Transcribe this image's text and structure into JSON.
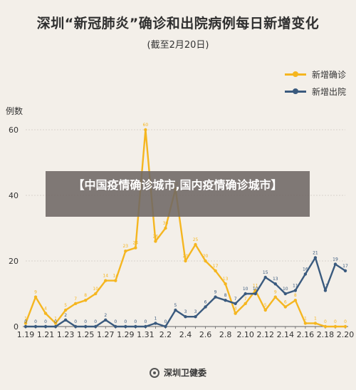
{
  "title": "深圳“新冠肺炎”确诊和出院病例每日新增变化",
  "subtitle": "(截至2月20日)",
  "overlay_text": "【中国疫情确诊城市,国内疫情确诊城市】",
  "footer": "深圳卫健委",
  "colors": {
    "confirmed": "#f5b620",
    "discharged": "#3a5a7e"
  },
  "chart_data": {
    "type": "line",
    "ylabel": "例数",
    "ylim": [
      0,
      60
    ],
    "yticks": [
      0,
      20,
      40,
      60
    ],
    "x": [
      "1.19",
      "1.20",
      "1.21",
      "1.22",
      "1.23",
      "1.24",
      "1.25",
      "1.26",
      "1.27",
      "1.28",
      "1.29",
      "1.30",
      "1.31",
      "2.1",
      "2.2",
      "2.3",
      "2.4",
      "2.5",
      "2.6",
      "2.7",
      "2.8",
      "2.9",
      "2.10",
      "2.11",
      "2.12",
      "2.13",
      "2.14",
      "2.15",
      "2.16",
      "2.17",
      "2.18",
      "2.19",
      "2.20"
    ],
    "xtick_labels": [
      "1.19",
      "1.21",
      "1.23",
      "1.25",
      "1.27",
      "1.29",
      "1.31",
      "2.2",
      "2.4",
      "2.6",
      "2.8",
      "2.10",
      "2.12",
      "2.14",
      "2.16",
      "2.18",
      "2.20"
    ],
    "legend": "top-right",
    "series": [
      {
        "name": "新增确诊",
        "values": [
          1,
          9,
          4,
          1,
          5,
          7,
          8,
          10,
          14,
          14,
          23,
          24,
          60,
          26,
          30,
          42,
          20,
          25,
          20,
          17,
          13,
          4,
          7,
          11,
          5,
          9,
          6,
          8,
          1,
          1,
          0,
          0,
          0
        ]
      },
      {
        "name": "新增出院",
        "values": [
          0,
          0,
          0,
          0,
          2,
          0,
          0,
          0,
          2,
          0,
          0,
          0,
          0,
          1,
          0,
          5,
          3,
          3,
          6,
          9,
          8,
          7,
          10,
          10,
          15,
          13,
          10,
          11,
          16,
          21,
          11,
          19,
          17
        ]
      }
    ]
  }
}
